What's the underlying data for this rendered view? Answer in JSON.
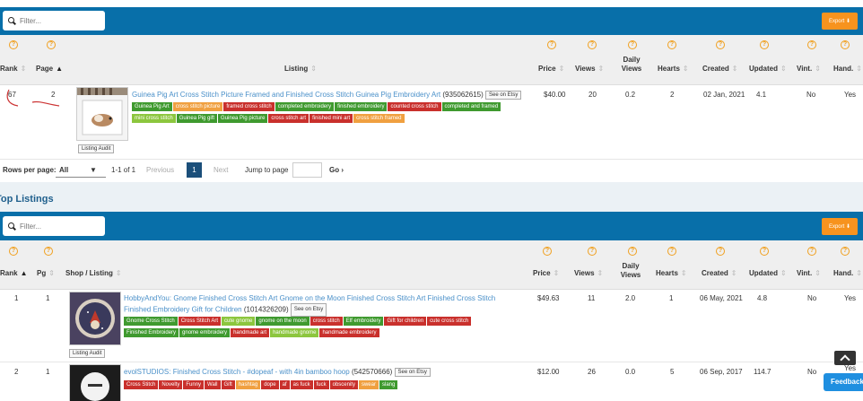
{
  "filter_placeholder": "Filter...",
  "export_label": "Export ⬇",
  "help_glyph": "?",
  "sort_up": "▲",
  "sort_both": "⇕",
  "table1": {
    "headers": {
      "rank": "Rank",
      "page": "Page",
      "listing": "Listing",
      "price": "Price",
      "views": "Views",
      "daily_views": "Daily Views",
      "hearts": "Hearts",
      "created": "Created",
      "updated": "Updated",
      "vint": "Vint.",
      "hand": "Hand."
    },
    "row": {
      "rank": "67",
      "page": "2",
      "title": "Guinea Pig Art Cross Stitch Picture Framed and Finished Cross Stitch Guinea Pig Embroidery Art",
      "listing_id": "(935062615)",
      "see_on_etsy": "See on Etsy",
      "audit": "Listing Audit",
      "price": "$40.00",
      "views": "20",
      "daily_views": "0.2",
      "hearts": "2",
      "created": "02 Jan, 2021",
      "updated": "4.1",
      "vint": "No",
      "hand": "Yes",
      "tags": [
        {
          "text": "Guinea Pig Art",
          "c": "g"
        },
        {
          "text": "cross stitch picture",
          "c": "o"
        },
        {
          "text": "framed cross stitch",
          "c": "r"
        },
        {
          "text": "completed embroidery",
          "c": "g"
        },
        {
          "text": "finished embroidery",
          "c": "g"
        },
        {
          "text": "counted cross stitch",
          "c": "r"
        },
        {
          "text": "completed and framed",
          "c": "g"
        },
        {
          "text": "mini cross stitch",
          "c": "l"
        },
        {
          "text": "Guinea Pig gift",
          "c": "g"
        },
        {
          "text": "Guinea Pig picture",
          "c": "g"
        },
        {
          "text": "cross stitch art",
          "c": "r"
        },
        {
          "text": "finished mini art",
          "c": "r"
        },
        {
          "text": "cross stitch framed",
          "c": "o"
        }
      ]
    }
  },
  "pager": {
    "rows_per_page": "Rows per page:",
    "rows_value": "All",
    "range": "1-1 of 1",
    "previous": "Previous",
    "current_page": "1",
    "next": "Next",
    "jump_label": "Jump to page",
    "go": "Go ›"
  },
  "section_title": "Top Listings",
  "table2": {
    "headers": {
      "rank": "Rank",
      "pg": "Pg",
      "shop_listing": "Shop / Listing",
      "price": "Price",
      "views": "Views",
      "daily_views": "Daily Views",
      "hearts": "Hearts",
      "created": "Created",
      "updated": "Updated",
      "vint": "Vint.",
      "hand": "Hand."
    },
    "rows": [
      {
        "rank": "1",
        "pg": "1",
        "shop": "HobbyAndYou:",
        "title": "Gnome Finished Cross Stitch Art Gnome on the Moon Finished Cross Stitch Art Finished Cross Stitch Finished Embroidery Gift for Children",
        "listing_id": "(1014326209)",
        "see_on_etsy": "See on Etsy",
        "audit": "Listing Audit",
        "price": "$49.63",
        "views": "11",
        "daily_views": "2.0",
        "hearts": "1",
        "created": "06 May, 2021",
        "updated": "4.8",
        "vint": "No",
        "hand": "Yes",
        "tags": [
          {
            "text": "Gnome Cross Stitch",
            "c": "g"
          },
          {
            "text": "Cross Stitch Art",
            "c": "r"
          },
          {
            "text": "cute gnome",
            "c": "l"
          },
          {
            "text": "gnome on the moon",
            "c": "g"
          },
          {
            "text": "cross stitch",
            "c": "r"
          },
          {
            "text": "Elf embroidery",
            "c": "g"
          },
          {
            "text": "Gift for children",
            "c": "r"
          },
          {
            "text": "cute cross stitch",
            "c": "r"
          },
          {
            "text": "Finished Embroidery",
            "c": "g"
          },
          {
            "text": "gnome embroidery",
            "c": "g"
          },
          {
            "text": "handmade art",
            "c": "r"
          },
          {
            "text": "handmade gnome",
            "c": "l"
          },
          {
            "text": "handmade embroidery",
            "c": "r"
          }
        ]
      },
      {
        "rank": "2",
        "pg": "1",
        "shop": "evolSTUDIOS:",
        "title": "Finished Cross Stitch - #dopeaf - with 4in bamboo hoop",
        "listing_id": "(542570666)",
        "see_on_etsy": "See on Etsy",
        "price": "$12.00",
        "views": "26",
        "daily_views": "0.0",
        "hearts": "5",
        "created": "06 Sep, 2017",
        "updated": "114.7",
        "vint": "No",
        "hand": "Yes",
        "tags": [
          {
            "text": "Cross Stitch",
            "c": "r"
          },
          {
            "text": "Novelty",
            "c": "r"
          },
          {
            "text": "Funny",
            "c": "r"
          },
          {
            "text": "Wall",
            "c": "r"
          },
          {
            "text": "Gift",
            "c": "r"
          },
          {
            "text": "hashtag",
            "c": "o"
          },
          {
            "text": "dope",
            "c": "r"
          },
          {
            "text": "af",
            "c": "r"
          },
          {
            "text": "as fuck",
            "c": "r"
          },
          {
            "text": "fuck",
            "c": "r"
          },
          {
            "text": "obscenity",
            "c": "r"
          },
          {
            "text": "swear",
            "c": "o"
          },
          {
            "text": "slang",
            "c": "g"
          }
        ]
      }
    ]
  },
  "feedback": "Feedback"
}
